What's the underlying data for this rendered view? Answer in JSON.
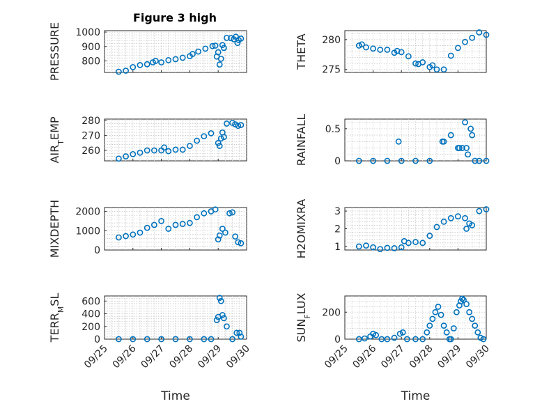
{
  "figure": {
    "title": "Figure 3 high",
    "marker_color": "#0072bd",
    "grid": true,
    "xlabel": "Time",
    "x_ticks": [
      "09/25",
      "09/26",
      "09/27",
      "09/28",
      "09/29",
      "09/30"
    ]
  },
  "chart_data": [
    {
      "type": "scatter",
      "name": "pressure",
      "title": "Figure 3 high",
      "ylabel": "PRESSURE",
      "ylim": [
        720,
        1010
      ],
      "yticks": [
        800,
        900,
        1000
      ],
      "ytick_labels": [
        "800",
        "900",
        "1000"
      ],
      "xlim": [
        0,
        5
      ],
      "xlabel": "",
      "x": [
        0.5,
        0.75,
        1.0,
        1.25,
        1.5,
        1.7,
        1.8,
        2.0,
        2.25,
        2.5,
        2.75,
        3.0,
        3.1,
        3.3,
        3.55,
        3.8,
        3.9,
        3.95,
        4.0,
        4.05,
        4.1,
        4.15,
        4.2,
        4.3,
        4.45,
        4.55,
        4.62,
        4.68,
        4.72,
        4.8
      ],
      "y": [
        725,
        732,
        757,
        771,
        777,
        790,
        800,
        790,
        805,
        812,
        822,
        833,
        848,
        865,
        885,
        903,
        906,
        830,
        860,
        775,
        815,
        910,
        890,
        960,
        958,
        950,
        968,
        925,
        945,
        955
      ]
    },
    {
      "type": "scatter",
      "name": "theta",
      "ylabel": "THETA",
      "ylim": [
        274.5,
        281.5
      ],
      "yticks": [
        275,
        280
      ],
      "ytick_labels": [
        "275",
        "280"
      ],
      "xlim": [
        0,
        5
      ],
      "xlabel": "",
      "x": [
        0.5,
        0.6,
        0.75,
        1.0,
        1.25,
        1.5,
        1.75,
        1.85,
        2.0,
        2.25,
        2.5,
        2.6,
        2.75,
        3.0,
        3.1,
        3.25,
        3.5,
        3.75,
        4.0,
        4.25,
        4.5,
        4.75,
        5.0
      ],
      "y": [
        279.0,
        279.2,
        278.7,
        278.5,
        278.3,
        278.3,
        277.8,
        278.1,
        277.9,
        277.2,
        276.0,
        275.9,
        276.2,
        275.4,
        275.7,
        275.0,
        275.0,
        277.3,
        278.6,
        279.6,
        280.3,
        281.2,
        280.8
      ]
    },
    {
      "type": "scatter",
      "name": "air-temp",
      "ylabel": "AIR_TEMP",
      "ylim": [
        253,
        281
      ],
      "yticks": [
        260,
        270,
        280
      ],
      "ytick_labels": [
        "260",
        "270",
        "280"
      ],
      "xlim": [
        0,
        5
      ],
      "xlabel": "",
      "x": [
        0.5,
        0.75,
        1.0,
        1.25,
        1.5,
        1.75,
        2.0,
        2.1,
        2.25,
        2.5,
        2.75,
        3.0,
        3.25,
        3.5,
        3.75,
        4.0,
        4.05,
        4.1,
        4.15,
        4.2,
        4.3,
        4.5,
        4.6,
        4.7,
        4.8
      ],
      "y": [
        254.5,
        256,
        257.5,
        258.5,
        260,
        260,
        260,
        262,
        259.5,
        260.5,
        260.5,
        263,
        266.5,
        269.5,
        271.5,
        265,
        263,
        268,
        272,
        269,
        278,
        278.5,
        277.5,
        276.5,
        277
      ]
    },
    {
      "type": "scatter",
      "name": "rainfall",
      "ylabel": "RAINFALL",
      "ylim": [
        0,
        0.65
      ],
      "yticks": [
        0,
        0.5
      ],
      "ytick_labels": [
        "0",
        "0.5"
      ],
      "xlim": [
        0,
        5
      ],
      "xlabel": "",
      "x": [
        0.5,
        1.0,
        1.5,
        1.9,
        2.0,
        2.5,
        3.0,
        3.45,
        3.5,
        3.75,
        4.0,
        4.05,
        4.15,
        4.25,
        4.3,
        4.35,
        4.45,
        4.5,
        4.6,
        4.75,
        5.0
      ],
      "y": [
        0,
        0,
        0,
        0.3,
        0,
        0,
        0,
        0.3,
        0.3,
        0.4,
        0.2,
        0.2,
        0.2,
        0.6,
        0.2,
        0.1,
        0.5,
        0.4,
        0,
        0,
        0
      ]
    },
    {
      "type": "scatter",
      "name": "mixdepth",
      "ylabel": "MIXDEPTH",
      "ylim": [
        0,
        2200
      ],
      "yticks": [
        0,
        1000,
        2000
      ],
      "ytick_labels": [
        "0",
        "1000",
        "2000"
      ],
      "xlim": [
        0,
        5
      ],
      "xlabel": "",
      "x": [
        0.5,
        0.75,
        1.0,
        1.25,
        1.5,
        1.75,
        2.0,
        2.25,
        2.5,
        2.75,
        3.0,
        3.25,
        3.5,
        3.75,
        3.9,
        4.0,
        4.05,
        4.15,
        4.25,
        4.4,
        4.5,
        4.6,
        4.7,
        4.8
      ],
      "y": [
        650,
        720,
        800,
        900,
        1150,
        1300,
        1500,
        1100,
        1300,
        1350,
        1400,
        1700,
        1900,
        2000,
        2100,
        550,
        750,
        1100,
        900,
        1900,
        1950,
        700,
        400,
        350
      ]
    },
    {
      "type": "scatter",
      "name": "h2omixra",
      "ylabel": "H2OMIXRA",
      "ylim": [
        0.8,
        3.2
      ],
      "yticks": [
        1,
        2,
        3
      ],
      "ytick_labels": [
        "1",
        "2",
        "3"
      ],
      "xlim": [
        0,
        5
      ],
      "xlabel": "",
      "x": [
        0.5,
        0.75,
        1.0,
        1.25,
        1.5,
        1.75,
        2.0,
        2.1,
        2.25,
        2.5,
        2.75,
        3.0,
        3.25,
        3.5,
        3.75,
        4.0,
        4.25,
        4.3,
        4.4,
        4.5,
        4.75,
        5.0
      ],
      "y": [
        1.0,
        1.05,
        0.95,
        0.85,
        0.92,
        0.9,
        0.95,
        1.3,
        1.2,
        1.25,
        1.2,
        1.6,
        2.1,
        2.4,
        2.6,
        2.7,
        2.6,
        2.0,
        2.3,
        2.2,
        3.0,
        3.1
      ]
    },
    {
      "type": "scatter",
      "name": "terr-msl",
      "ylabel": "TERR_MSL",
      "ylim": [
        0,
        680
      ],
      "yticks": [
        0,
        200,
        400,
        600
      ],
      "ytick_labels": [
        "0",
        "200",
        "400",
        "600"
      ],
      "xlim": [
        0,
        5
      ],
      "xlabel": "Time",
      "x": [
        0.5,
        1.0,
        1.5,
        2.0,
        2.5,
        3.0,
        3.5,
        3.75,
        3.95,
        4.0,
        4.05,
        4.1,
        4.15,
        4.2,
        4.3,
        4.5,
        4.65,
        4.75,
        4.8
      ],
      "y": [
        0,
        0,
        0,
        0,
        0,
        0,
        0,
        0,
        300,
        350,
        650,
        600,
        380,
        330,
        200,
        0,
        100,
        100,
        40
      ]
    },
    {
      "type": "scatter",
      "name": "sun-flux",
      "ylabel": "SUN_FLUX",
      "ylim": [
        0,
        320
      ],
      "yticks": [
        0,
        200
      ],
      "ytick_labels": [
        "0",
        "200"
      ],
      "xlim": [
        0,
        5
      ],
      "xlabel": "Time",
      "x": [
        0.5,
        0.7,
        0.9,
        1.0,
        1.1,
        1.3,
        1.5,
        1.75,
        1.95,
        2.05,
        2.2,
        2.5,
        2.75,
        2.9,
        3.0,
        3.1,
        3.2,
        3.3,
        3.4,
        3.5,
        3.6,
        3.7,
        3.75,
        3.85,
        3.95,
        4.05,
        4.1,
        4.15,
        4.2,
        4.3,
        4.4,
        4.5,
        4.6,
        4.7,
        4.8,
        4.9
      ],
      "y": [
        0,
        5,
        20,
        40,
        30,
        0,
        0,
        10,
        40,
        50,
        0,
        0,
        0,
        50,
        100,
        150,
        200,
        240,
        180,
        100,
        50,
        0,
        0,
        80,
        200,
        250,
        280,
        300,
        290,
        260,
        200,
        150,
        100,
        50,
        10,
        0
      ]
    }
  ]
}
